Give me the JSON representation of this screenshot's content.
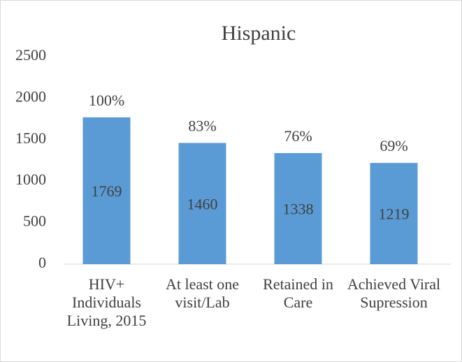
{
  "chart_data": {
    "type": "bar",
    "title": "Hispanic",
    "categories": [
      "HIV+ Individuals Living, 2015",
      "At least one visit/Lab",
      "Retained in Care",
      "Achieved Viral Supression"
    ],
    "values": [
      1769,
      1460,
      1338,
      1219
    ],
    "percent_labels": [
      "100%",
      "83%",
      "76%",
      "69%"
    ],
    "color": "#5b9bd5",
    "ylim": [
      0,
      2500
    ],
    "yticks": [
      0,
      500,
      1000,
      1500,
      2000,
      2500
    ],
    "grid": false
  }
}
